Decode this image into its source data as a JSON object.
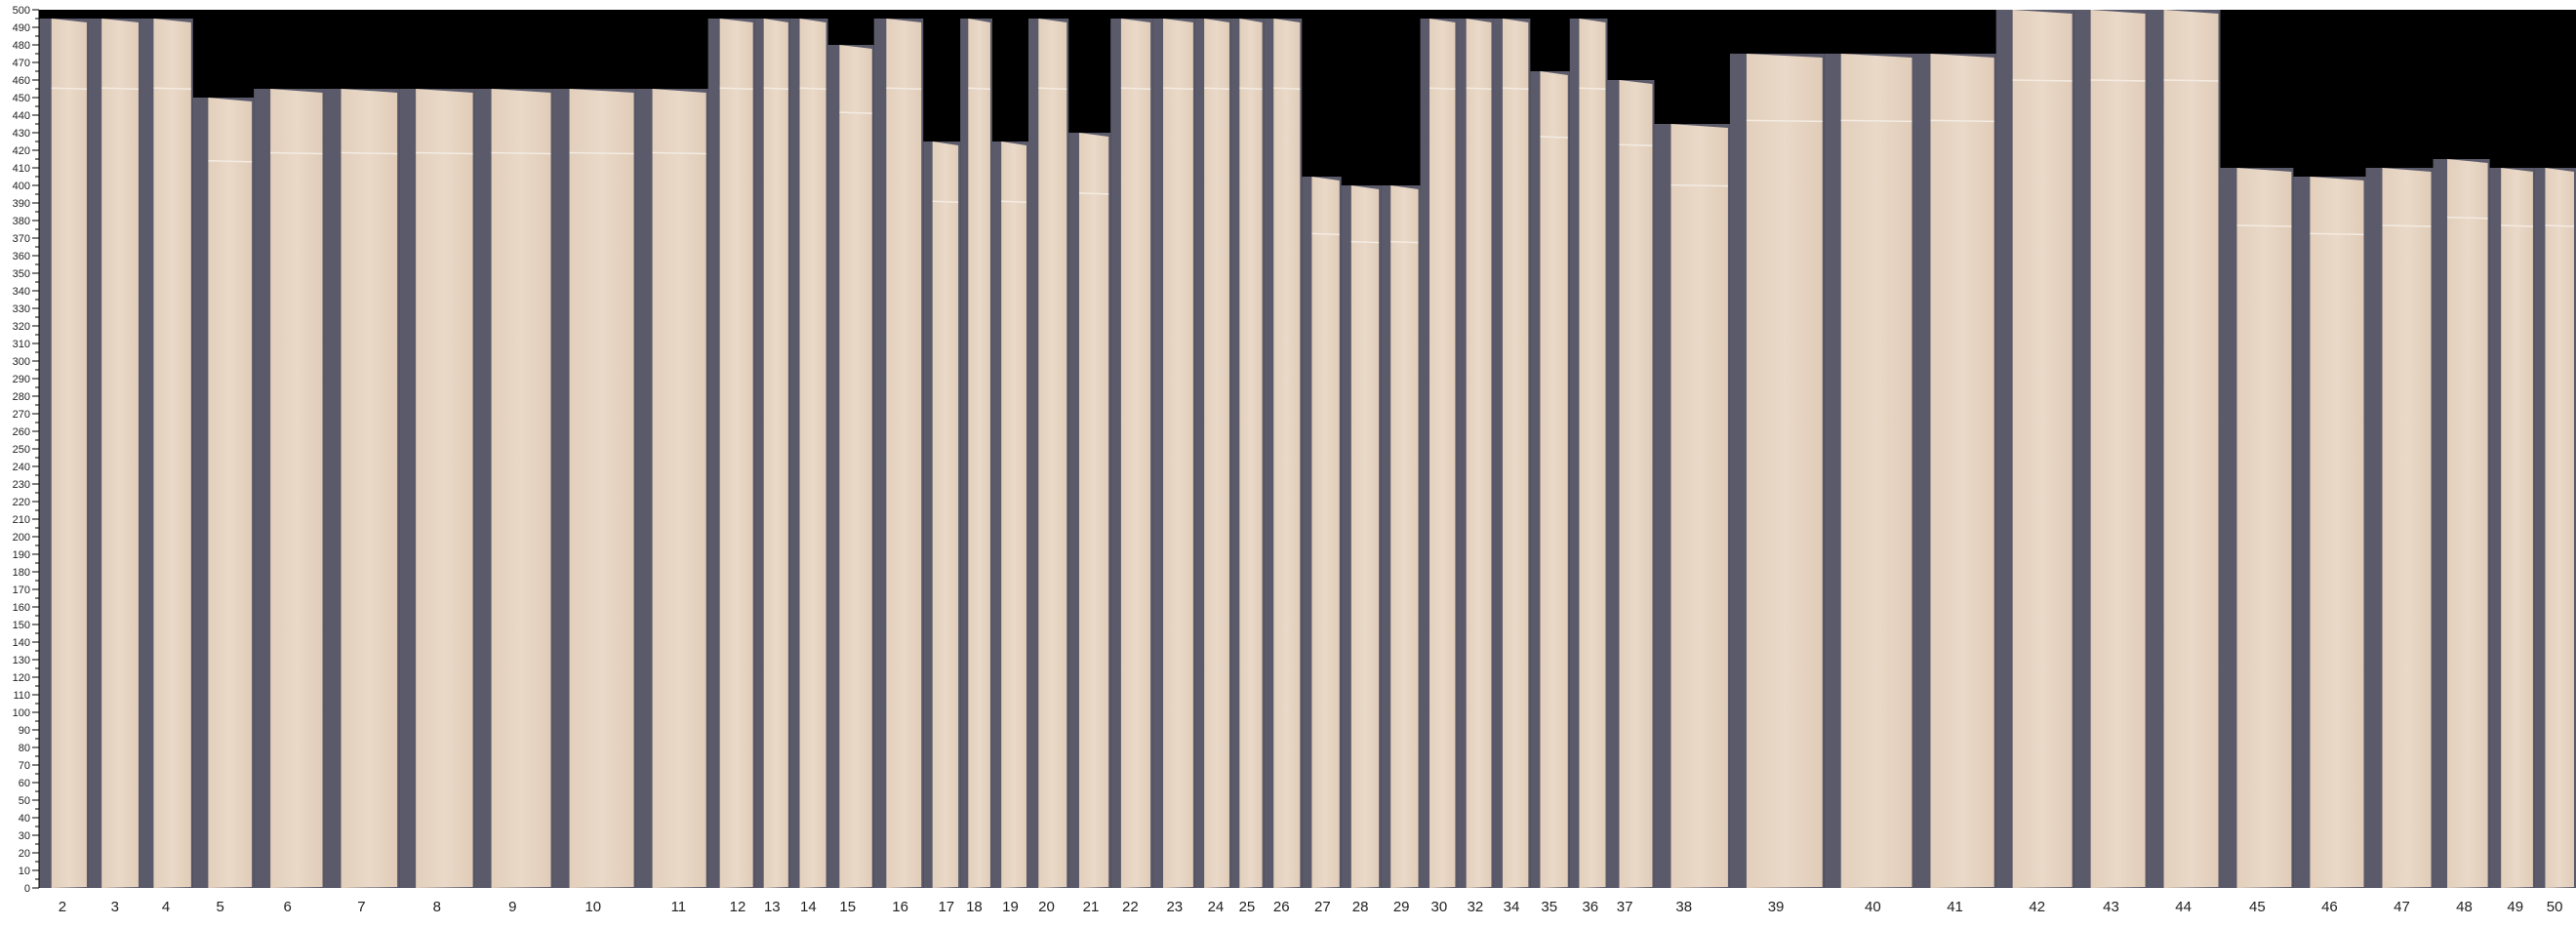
{
  "chart_data": {
    "type": "bar",
    "categories": [
      "2",
      "3",
      "4",
      "5",
      "6",
      "7",
      "8",
      "9",
      "10",
      "11",
      "12",
      "13",
      "14",
      "15",
      "16",
      "17",
      "18",
      "19",
      "20",
      "21",
      "22",
      "23",
      "24",
      "25",
      "26",
      "27",
      "28",
      "29",
      "30",
      "32",
      "34",
      "35",
      "36",
      "37",
      "38",
      "39",
      "40",
      "41",
      "42",
      "43",
      "44",
      "45",
      "46",
      "47",
      "48",
      "49",
      "50"
    ],
    "values": [
      495,
      495,
      495,
      450,
      455,
      455,
      455,
      455,
      455,
      455,
      495,
      495,
      495,
      480,
      495,
      425,
      495,
      425,
      495,
      430,
      495,
      495,
      495,
      495,
      495,
      405,
      400,
      400,
      495,
      495,
      495,
      465,
      495,
      460,
      435,
      475,
      475,
      475,
      500,
      500,
      500,
      410,
      405,
      410,
      415,
      410,
      410
    ],
    "xlabel": "",
    "ylabel": "",
    "ylim": [
      0,
      500
    ],
    "y_tick_step": 10,
    "grid": false,
    "colors": {
      "sheet": "#e5d3c1",
      "shadow": "#5a5a6a",
      "background": "#000000"
    }
  }
}
